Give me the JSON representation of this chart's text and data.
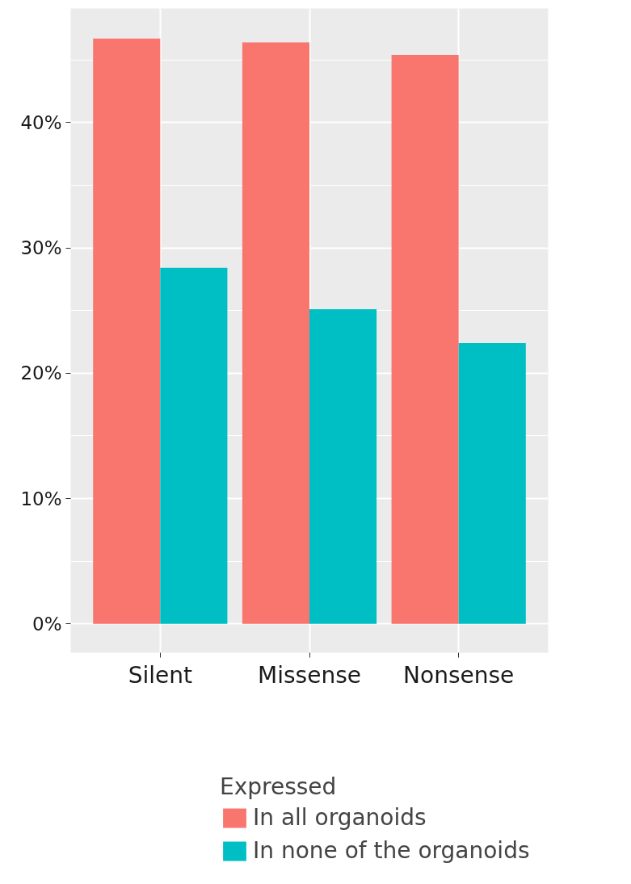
{
  "chart_data": {
    "type": "bar",
    "categories": [
      "Silent",
      "Missense",
      "Nonsense"
    ],
    "series": [
      {
        "name": "In all organoids",
        "color": "#f8766d",
        "values": [
          46.7,
          46.4,
          45.4
        ]
      },
      {
        "name": "In none of the organoids",
        "color": "#00bfc4",
        "values": [
          28.4,
          25.1,
          22.4
        ]
      }
    ],
    "ylim": [
      -2.3,
      49.1
    ],
    "yticks": [
      {
        "value": 0,
        "label": "0%"
      },
      {
        "value": 10,
        "label": "10%"
      },
      {
        "value": 20,
        "label": "20%"
      },
      {
        "value": 30,
        "label": "30%"
      },
      {
        "value": 40,
        "label": "40%"
      }
    ],
    "grid": true,
    "legend": "bottom",
    "legend_title": "Expressed"
  }
}
